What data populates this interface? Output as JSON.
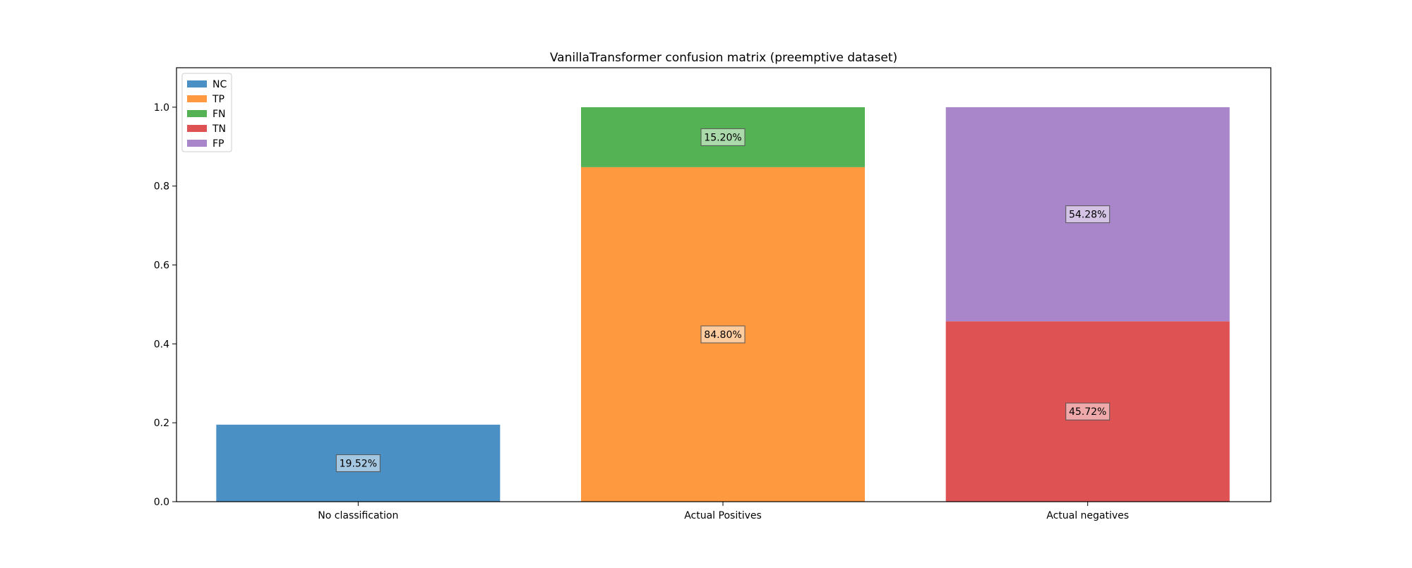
{
  "chart_data": {
    "type": "bar",
    "stacked": true,
    "title": "VanillaTransformer confusion matrix (preemptive dataset)",
    "xlabel": "",
    "ylabel": "",
    "ylim": [
      0,
      1.1
    ],
    "yticks": [
      "0.0",
      "0.2",
      "0.4",
      "0.6",
      "0.8",
      "1.0"
    ],
    "grid": false,
    "legend_position": "top-left",
    "categories": [
      "No classification",
      "Actual Positives",
      "Actual negatives"
    ],
    "series": [
      {
        "name": "NC",
        "color": "#4a90c4",
        "category": 0,
        "bottom": 0,
        "value": 0.1952,
        "label": "19.52%"
      },
      {
        "name": "TP",
        "color": "#ff9940",
        "category": 1,
        "bottom": 0,
        "value": 0.848,
        "label": "84.80%"
      },
      {
        "name": "FN",
        "color": "#54b254",
        "category": 1,
        "bottom": 0.848,
        "value": 0.152,
        "label": "15.20%"
      },
      {
        "name": "TN",
        "color": "#df5254",
        "category": 2,
        "bottom": 0,
        "value": 0.4572,
        "label": "45.72%"
      },
      {
        "name": "FP",
        "color": "#a886c9",
        "category": 2,
        "bottom": 0.4572,
        "value": 0.5428,
        "label": "54.28%"
      }
    ]
  }
}
